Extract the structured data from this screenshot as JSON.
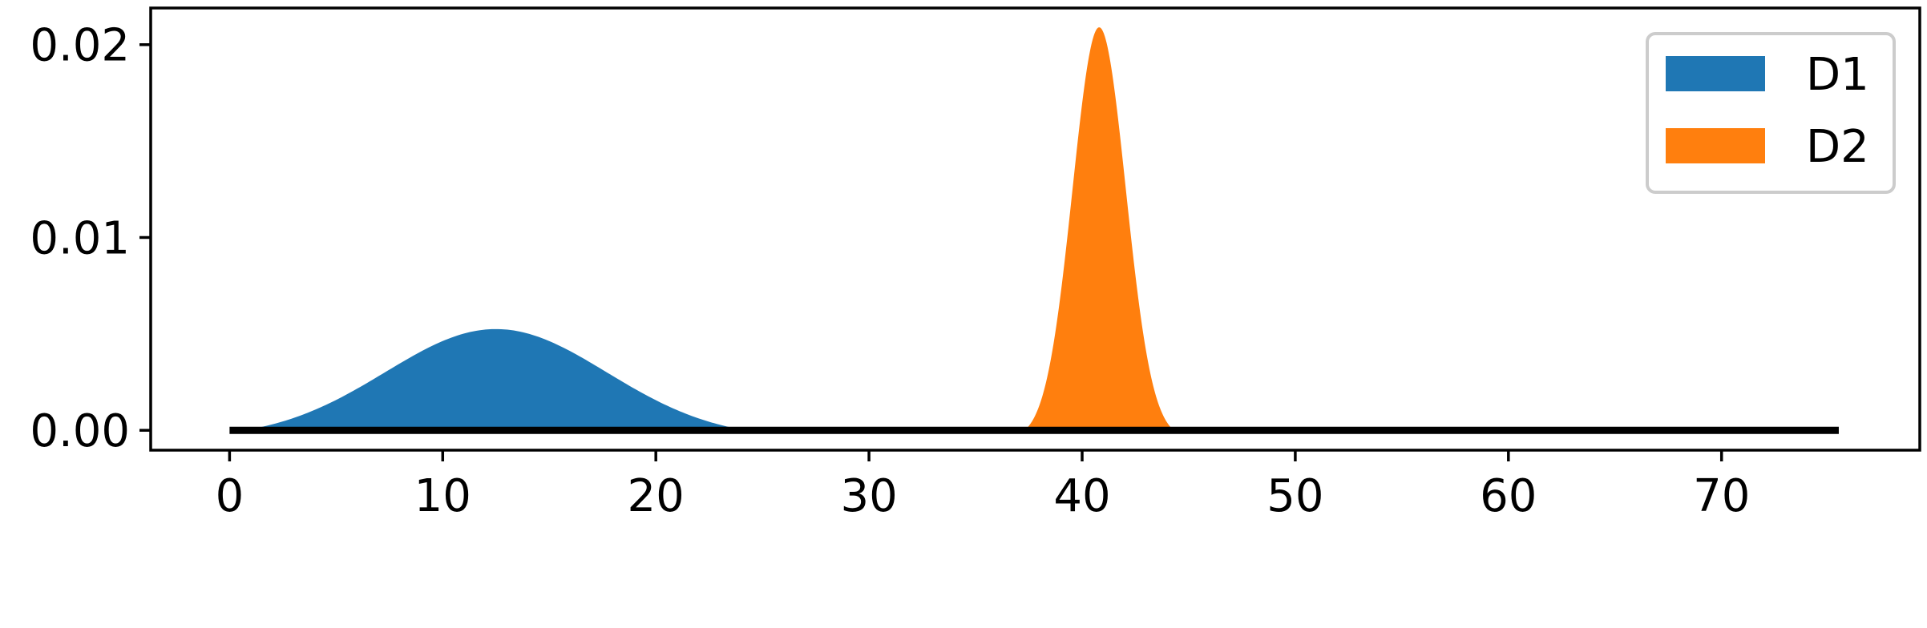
{
  "chart_data": {
    "type": "area",
    "title": "",
    "xlabel": "",
    "ylabel": "",
    "xlim": [
      -3.7,
      79.3
    ],
    "ylim": [
      -0.00103,
      0.0219
    ],
    "x_ticks": [
      0,
      10,
      20,
      30,
      40,
      50,
      60,
      70
    ],
    "x_tick_labels": [
      "0",
      "10",
      "20",
      "30",
      "40",
      "50",
      "60",
      "70"
    ],
    "y_ticks": [
      0.0,
      0.01,
      0.02
    ],
    "y_tick_labels": [
      "0.00",
      "0.01",
      "0.02"
    ],
    "grid": false,
    "legend": {
      "position": "top-right"
    },
    "baseline": {
      "x": [
        0,
        75.5
      ],
      "y": 0
    },
    "series": [
      {
        "name": "D1",
        "color": "#1f77b4",
        "shape": "bump",
        "support": [
          0.7,
          24.2
        ],
        "peak_x": 12.5,
        "peak_y": 0.00525,
        "spread": 5.2
      },
      {
        "name": "D2",
        "color": "#ff7f0e",
        "shape": "bump",
        "support": [
          37.3,
          44.3
        ],
        "peak_x": 40.8,
        "peak_y": 0.0209,
        "spread": 1.25
      }
    ]
  }
}
